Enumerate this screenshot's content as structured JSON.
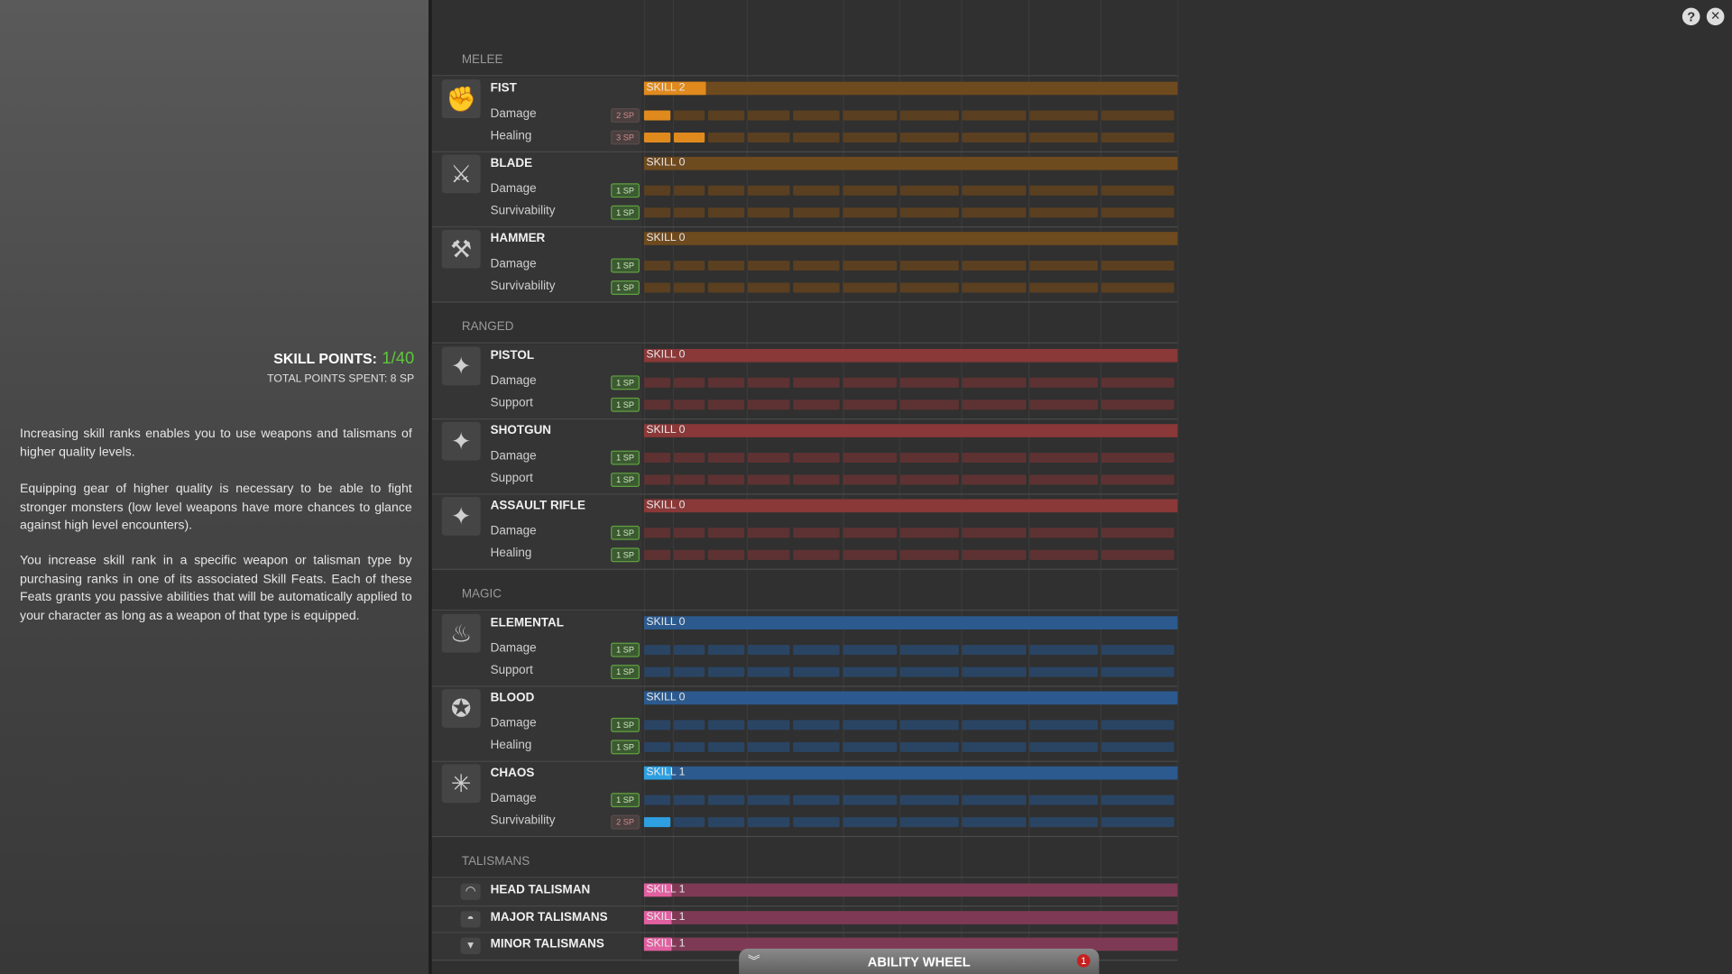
{
  "skill_points": {
    "label": "SKILL POINTS:",
    "value": "1/40",
    "total": "TOTAL POINTS SPENT: 8 SP"
  },
  "paragraphs": [
    "Increasing skill ranks enables you to use weapons and talismans of higher quality levels.",
    "Equipping gear of higher quality is necessary to be able to fight stronger monsters (low level weapons have more chances to glance against high level encounters).",
    "You increase skill rank in a specific weapon or talisman type by purchasing ranks in one of its associated Skill Feats. Each of these Feats grants you passive abilities that will be automatically applied to your character as long as a weapon of that type is equipped."
  ],
  "ranks": 10,
  "sections": [
    {
      "name": "MELEE",
      "bar": "#6e4a1f",
      "fill": "#e08a1e",
      "empty": "#5a3f20",
      "weapons": [
        {
          "name": "FIST",
          "icon": "✊",
          "level": 2,
          "level_label": "SKILL 2",
          "feats": [
            {
              "name": "Damage",
              "cost": "2 SP",
              "affordable": false,
              "filled": 1
            },
            {
              "name": "Healing",
              "cost": "3 SP",
              "affordable": false,
              "filled": 2
            }
          ]
        },
        {
          "name": "BLADE",
          "icon": "⚔",
          "level": 0,
          "level_label": "SKILL 0",
          "feats": [
            {
              "name": "Damage",
              "cost": "1 SP",
              "affordable": true,
              "filled": 0
            },
            {
              "name": "Survivability",
              "cost": "1 SP",
              "affordable": true,
              "filled": 0
            }
          ]
        },
        {
          "name": "HAMMER",
          "icon": "⚒",
          "level": 0,
          "level_label": "SKILL 0",
          "feats": [
            {
              "name": "Damage",
              "cost": "1 SP",
              "affordable": true,
              "filled": 0
            },
            {
              "name": "Survivability",
              "cost": "1 SP",
              "affordable": true,
              "filled": 0
            }
          ]
        }
      ]
    },
    {
      "name": "RANGED",
      "bar": "#8a3838",
      "fill": "#d04a4a",
      "empty": "#5e3232",
      "weapons": [
        {
          "name": "PISTOL",
          "icon": "✦",
          "level": 0,
          "level_label": "SKILL 0",
          "feats": [
            {
              "name": "Damage",
              "cost": "1 SP",
              "affordable": true,
              "filled": 0
            },
            {
              "name": "Support",
              "cost": "1 SP",
              "affordable": true,
              "filled": 0
            }
          ]
        },
        {
          "name": "SHOTGUN",
          "icon": "✦",
          "level": 0,
          "level_label": "SKILL 0",
          "feats": [
            {
              "name": "Damage",
              "cost": "1 SP",
              "affordable": true,
              "filled": 0
            },
            {
              "name": "Support",
              "cost": "1 SP",
              "affordable": true,
              "filled": 0
            }
          ]
        },
        {
          "name": "ASSAULT RIFLE",
          "icon": "✦",
          "level": 0,
          "level_label": "SKILL 0",
          "feats": [
            {
              "name": "Damage",
              "cost": "1 SP",
              "affordable": true,
              "filled": 0
            },
            {
              "name": "Healing",
              "cost": "1 SP",
              "affordable": true,
              "filled": 0
            }
          ]
        }
      ]
    },
    {
      "name": "MAGIC",
      "bar": "#2c5a8e",
      "fill": "#2e9fe0",
      "empty": "#2a4463",
      "weapons": [
        {
          "name": "ELEMENTAL",
          "icon": "♨",
          "level": 0,
          "level_label": "SKILL 0",
          "feats": [
            {
              "name": "Damage",
              "cost": "1 SP",
              "affordable": true,
              "filled": 0
            },
            {
              "name": "Support",
              "cost": "1 SP",
              "affordable": true,
              "filled": 0
            }
          ]
        },
        {
          "name": "BLOOD",
          "icon": "✪",
          "level": 0,
          "level_label": "SKILL 0",
          "feats": [
            {
              "name": "Damage",
              "cost": "1 SP",
              "affordable": true,
              "filled": 0
            },
            {
              "name": "Healing",
              "cost": "1 SP",
              "affordable": true,
              "filled": 0
            }
          ]
        },
        {
          "name": "CHAOS",
          "icon": "✳",
          "level": 1,
          "level_label": "SKILL 1",
          "feats": [
            {
              "name": "Damage",
              "cost": "1 SP",
              "affordable": true,
              "filled": 0
            },
            {
              "name": "Survivability",
              "cost": "2 SP",
              "affordable": false,
              "filled": 1
            }
          ]
        }
      ]
    },
    {
      "name": "TALISMANS",
      "bar": "#7e3a55",
      "fill": "#e060a0",
      "empty": "#5a3045",
      "weapons": [
        {
          "name": "HEAD TALISMAN",
          "icon": "◠",
          "level": 1,
          "level_label": "SKILL 1",
          "feats": []
        },
        {
          "name": "MAJOR TALISMANS",
          "icon": "◓",
          "level": 1,
          "level_label": "SKILL 1",
          "feats": []
        },
        {
          "name": "MINOR TALISMANS",
          "icon": "▾",
          "level": 1,
          "level_label": "SKILL 1",
          "feats": []
        }
      ]
    }
  ],
  "ability_wheel": {
    "label": "ABILITY WHEEL",
    "badge": "1"
  },
  "controls": {
    "help": "?",
    "close": "✕"
  }
}
